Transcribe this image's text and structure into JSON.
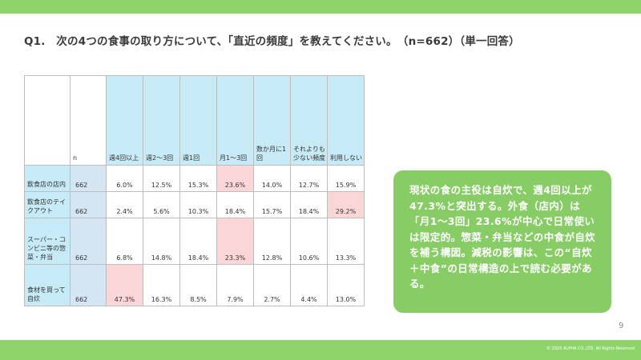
{
  "title": "Q1.　次の4つの食事の取り方について、「直近の頻度」を教えてください。　（n=662）（単一回答）",
  "table": {
    "headers": [
      "",
      "n",
      "週4回以上",
      "週2〜3回",
      "週1回",
      "月1〜3回",
      "数か月に1回",
      "それよりも少ない頻度",
      "利用しない"
    ],
    "rows": [
      {
        "label": "飲食店の店内",
        "n": "662",
        "values": [
          "6.0%",
          "12.5%",
          "15.3%",
          "23.6%",
          "14.0%",
          "12.7%",
          "15.9%"
        ]
      },
      {
        "label": "飲食店のテイクアウト",
        "n": "662",
        "values": [
          "2.4%",
          "5.6%",
          "10.3%",
          "18.4%",
          "15.7%",
          "18.4%",
          "29.2%"
        ]
      },
      {
        "label": "スーパー・コンビニ等の惣菜・弁当",
        "n": "662",
        "values": [
          "6.8%",
          "14.8%",
          "18.4%",
          "23.3%",
          "12.8%",
          "10.6%",
          "13.3%"
        ]
      },
      {
        "label": "食材を買って自炊",
        "n": "662",
        "values": [
          "47.3%",
          "16.3%",
          "8.5%",
          "7.9%",
          "2.7%",
          "4.4%",
          "13.0%"
        ]
      }
    ]
  },
  "highlight_color": "#fbd6d8",
  "header_color": "#c7eaf7",
  "accent_color": "#8fd46a",
  "callout": {
    "text": "現状の食の主役は自炊で、週4回以上が47.3%と突出する。外食（店内）は「月1〜3回」23.6%が中心で日常使いは限定的。惣菜・弁当などの中食が自炊を補う構図。減税の影響は、この“自炊＋中食”の日常構造の上で読む必要がある。"
  },
  "page_number": "9",
  "copyright": "© 2025 ALPHA CO.,LTD. All Rights Reserved"
}
